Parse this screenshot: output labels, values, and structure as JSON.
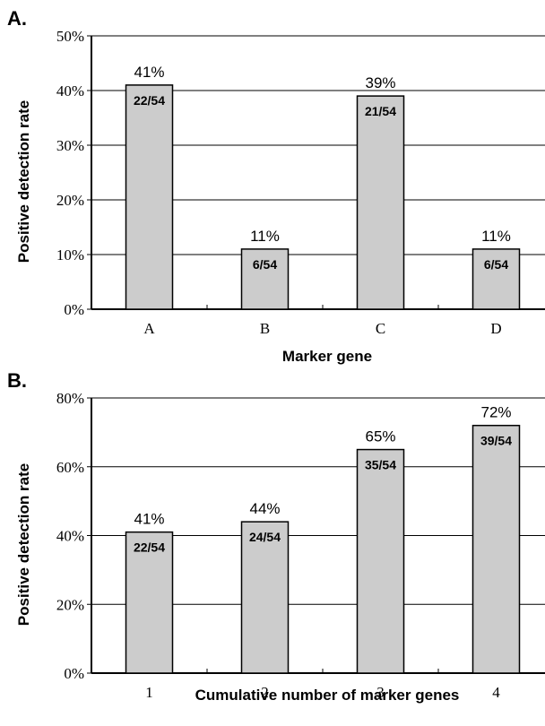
{
  "chart_data": [
    {
      "type": "bar",
      "panel_label": "A.",
      "categories": [
        "A",
        "B",
        "C",
        "D"
      ],
      "values": [
        41,
        11,
        39,
        11
      ],
      "value_labels": [
        "41%",
        "11%",
        "39%",
        "11%"
      ],
      "inner_labels": [
        "22/54",
        "6/54",
        "21/54",
        "6/54"
      ],
      "xlabel": "Marker gene",
      "ylabel": "Positive detection rate",
      "ylim": [
        0,
        50
      ],
      "yticks": [
        0,
        10,
        20,
        30,
        40,
        50
      ],
      "ytick_labels": [
        "0%",
        "10%",
        "20%",
        "30%",
        "40%",
        "50%"
      ],
      "grid": true,
      "bar_color": "#cccccc"
    },
    {
      "type": "bar",
      "panel_label": "B.",
      "categories": [
        "1",
        "2",
        "3",
        "4"
      ],
      "values": [
        41,
        44,
        65,
        72
      ],
      "value_labels": [
        "41%",
        "44%",
        "65%",
        "72%"
      ],
      "inner_labels": [
        "22/54",
        "24/54",
        "35/54",
        "39/54"
      ],
      "xlabel": "Cumulative number of marker genes",
      "ylabel": "Positive detection rate",
      "ylim": [
        0,
        80
      ],
      "yticks": [
        0,
        20,
        40,
        60,
        80
      ],
      "ytick_labels": [
        "0%",
        "20%",
        "40%",
        "60%",
        "80%"
      ],
      "grid": true,
      "bar_color": "#cccccc"
    }
  ]
}
